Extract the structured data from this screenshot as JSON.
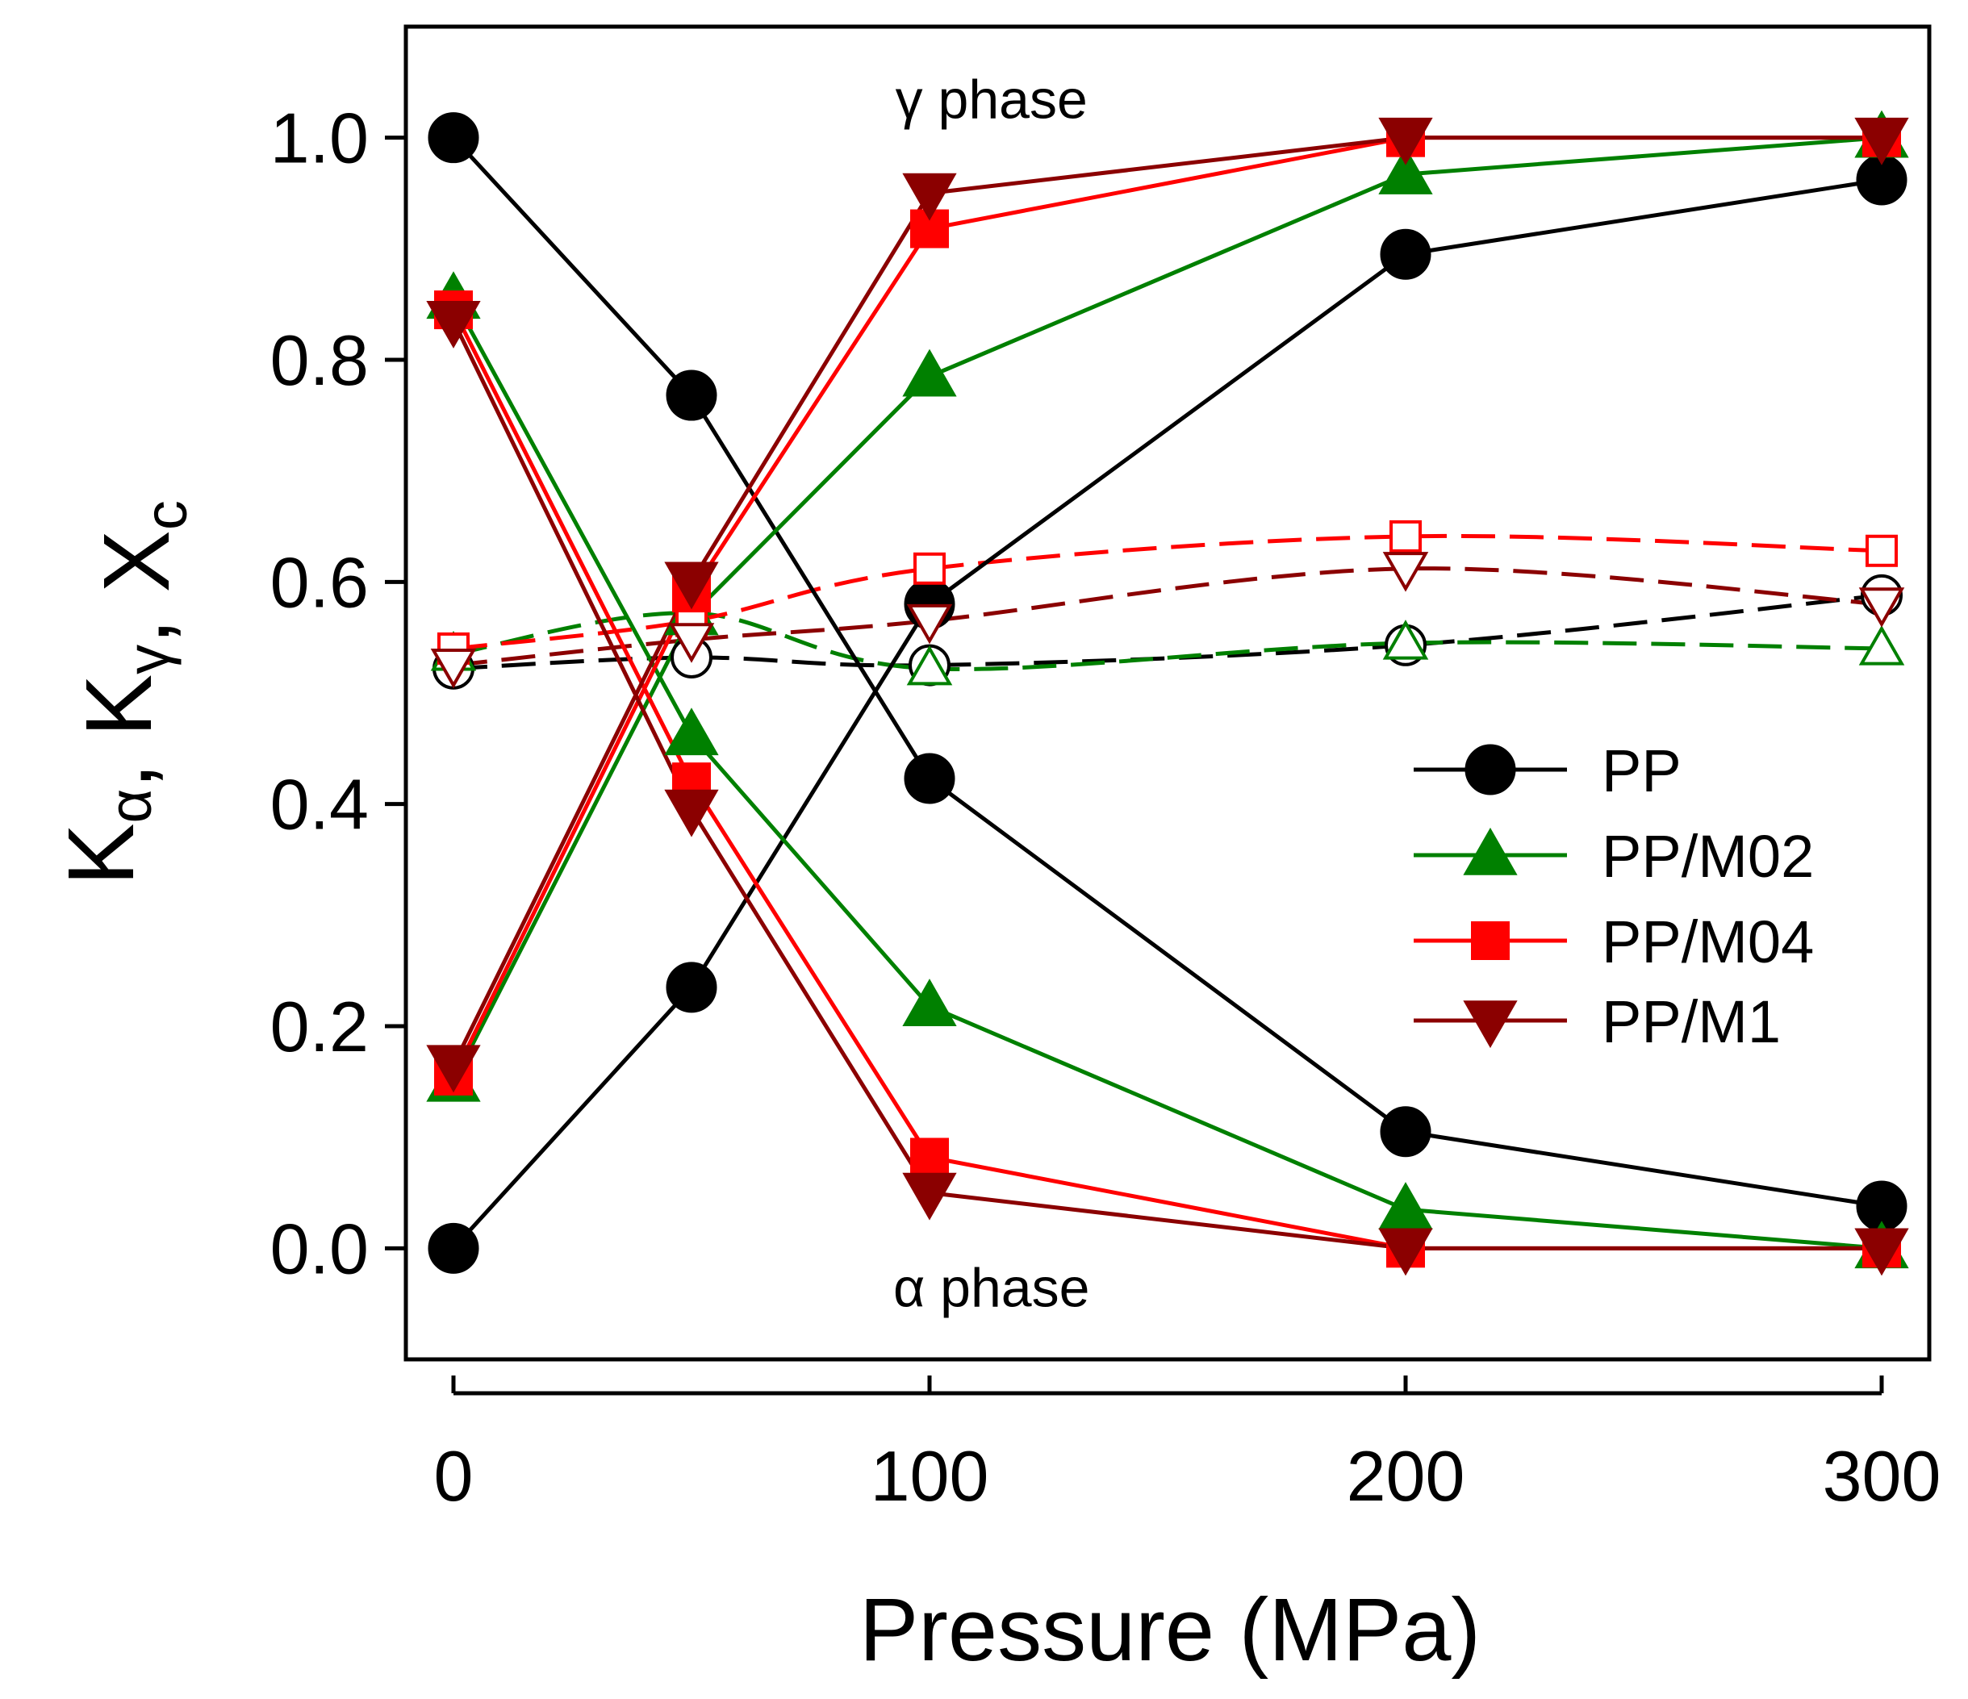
{
  "chart_data": {
    "type": "line",
    "x": [
      0,
      50,
      100,
      200,
      300
    ],
    "xlabel": "Pressure (MPa)",
    "ylabel": {
      "parts": [
        {
          "main": "K",
          "sub": "α"
        },
        {
          "main": ", K",
          "sub": "γ"
        },
        {
          "main": ", X",
          "sub": "c"
        }
      ]
    },
    "xlim": [
      -10,
      310
    ],
    "ylim": [
      -0.1,
      1.1
    ],
    "xticks": [
      0,
      100,
      200,
      300
    ],
    "xtick_labels": [
      "0",
      "100",
      "200",
      "300"
    ],
    "yticks": [
      0.0,
      0.2,
      0.4,
      0.6,
      0.8,
      1.0
    ],
    "ytick_labels": [
      "0.0",
      "0.2",
      "0.4",
      "0.6",
      "0.8",
      "1.0"
    ],
    "annotations": [
      {
        "text": "γ phase",
        "x": 113,
        "y": 1.035
      },
      {
        "text": "α phase",
        "x": 113,
        "y": -0.035
      }
    ],
    "legend_position": "right-middle",
    "series": [
      {
        "name": "PP",
        "color": "#000000",
        "marker": "circle",
        "legend": true,
        "K_gamma": [
          0.0,
          0.235,
          0.58,
          0.895,
          0.962
        ],
        "K_alpha": [
          1.0,
          0.768,
          0.423,
          0.105,
          0.038
        ],
        "Xc": [
          0.522,
          0.532,
          0.525,
          0.543,
          0.588
        ]
      },
      {
        "name": "PP/M02",
        "color": "#008000",
        "marker": "triangle-up",
        "legend": true,
        "K_gamma": [
          0.15,
          0.57,
          0.785,
          0.967,
          1.0
        ],
        "K_alpha": [
          0.855,
          0.462,
          0.218,
          0.035,
          0.0
        ],
        "Xc": [
          0.535,
          0.572,
          0.522,
          0.545,
          0.54
        ]
      },
      {
        "name": "PP/M04",
        "color": "#ff0000",
        "marker": "square",
        "legend": true,
        "K_gamma": [
          0.155,
          0.59,
          0.918,
          1.0,
          1.0
        ],
        "K_alpha": [
          0.845,
          0.42,
          0.082,
          0.0,
          0.0
        ],
        "Xc": [
          0.54,
          0.565,
          0.612,
          0.641,
          0.628
        ]
      },
      {
        "name": "PP/M1",
        "color": "#8b0000",
        "marker": "triangle-down",
        "legend": true,
        "K_gamma": [
          0.165,
          0.6,
          0.95,
          1.0,
          1.0
        ],
        "K_alpha": [
          0.835,
          0.395,
          0.05,
          0.0,
          0.0
        ],
        "Xc": [
          0.525,
          0.548,
          0.565,
          0.612,
          0.58
        ]
      }
    ]
  }
}
